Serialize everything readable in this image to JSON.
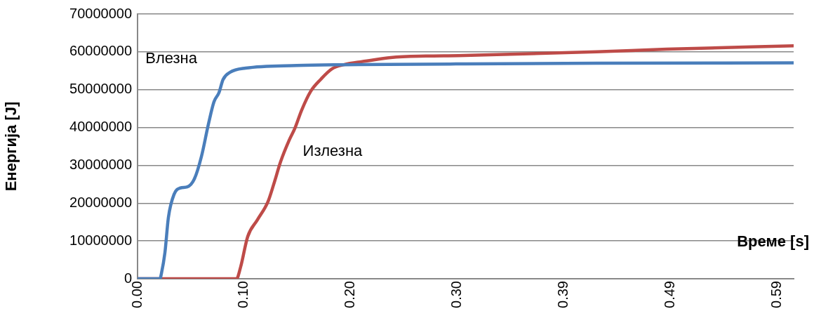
{
  "chart_data": {
    "type": "line",
    "xlabel": "Време [s]",
    "ylabel": "Енергија [J]",
    "xlim": [
      0,
      0.606
    ],
    "xticks": [
      {
        "value": 0,
        "label": "0.00"
      },
      {
        "value": 0.0985,
        "label": "0.10"
      },
      {
        "value": 0.197,
        "label": "0.20"
      },
      {
        "value": 0.2955,
        "label": "0.30"
      },
      {
        "value": 0.394,
        "label": "0.39"
      },
      {
        "value": 0.4925,
        "label": "0.49"
      },
      {
        "value": 0.591,
        "label": "0.59"
      }
    ],
    "ylim": [
      0,
      70000000
    ],
    "yticks": [
      0,
      10000000,
      20000000,
      30000000,
      40000000,
      50000000,
      60000000,
      70000000
    ],
    "grid": "y",
    "legend": false,
    "marker": "none",
    "line_style": "solid",
    "series": [
      {
        "name": "Влезна",
        "color": "#4a7ebb",
        "x": [
          0,
          0.0207,
          0.022,
          0.0253,
          0.0285,
          0.0337,
          0.0395,
          0.046,
          0.0525,
          0.059,
          0.0654,
          0.0706,
          0.0752,
          0.079,
          0.0855,
          0.0998,
          0.147,
          0.1905,
          0.294,
          0.424,
          0.606
        ],
        "values": [
          0,
          0,
          1300000,
          6900000,
          16200000,
          22300000,
          24000000,
          24300000,
          26400000,
          32300000,
          40800000,
          46800000,
          49200000,
          52700000,
          54600000,
          55700000,
          56400000,
          56600000,
          56800000,
          57000000,
          57100000
        ]
      },
      {
        "name": "Излезна",
        "color": "#be4b48",
        "x": [
          0,
          0.0914,
          0.0953,
          0.1017,
          0.1108,
          0.1205,
          0.1257,
          0.1322,
          0.14,
          0.1452,
          0.1516,
          0.16,
          0.1691,
          0.1795,
          0.1905,
          0.2119,
          0.2339,
          0.2663,
          0.296,
          0.424,
          0.4886,
          0.606
        ],
        "values": [
          0,
          0,
          3200000,
          11100000,
          15600000,
          20400000,
          24900000,
          31000000,
          36600000,
          39700000,
          44600000,
          49600000,
          52700000,
          55500000,
          56600000,
          57600000,
          58500000,
          58900000,
          59000000,
          60000000,
          60700000,
          61600000
        ]
      }
    ]
  }
}
